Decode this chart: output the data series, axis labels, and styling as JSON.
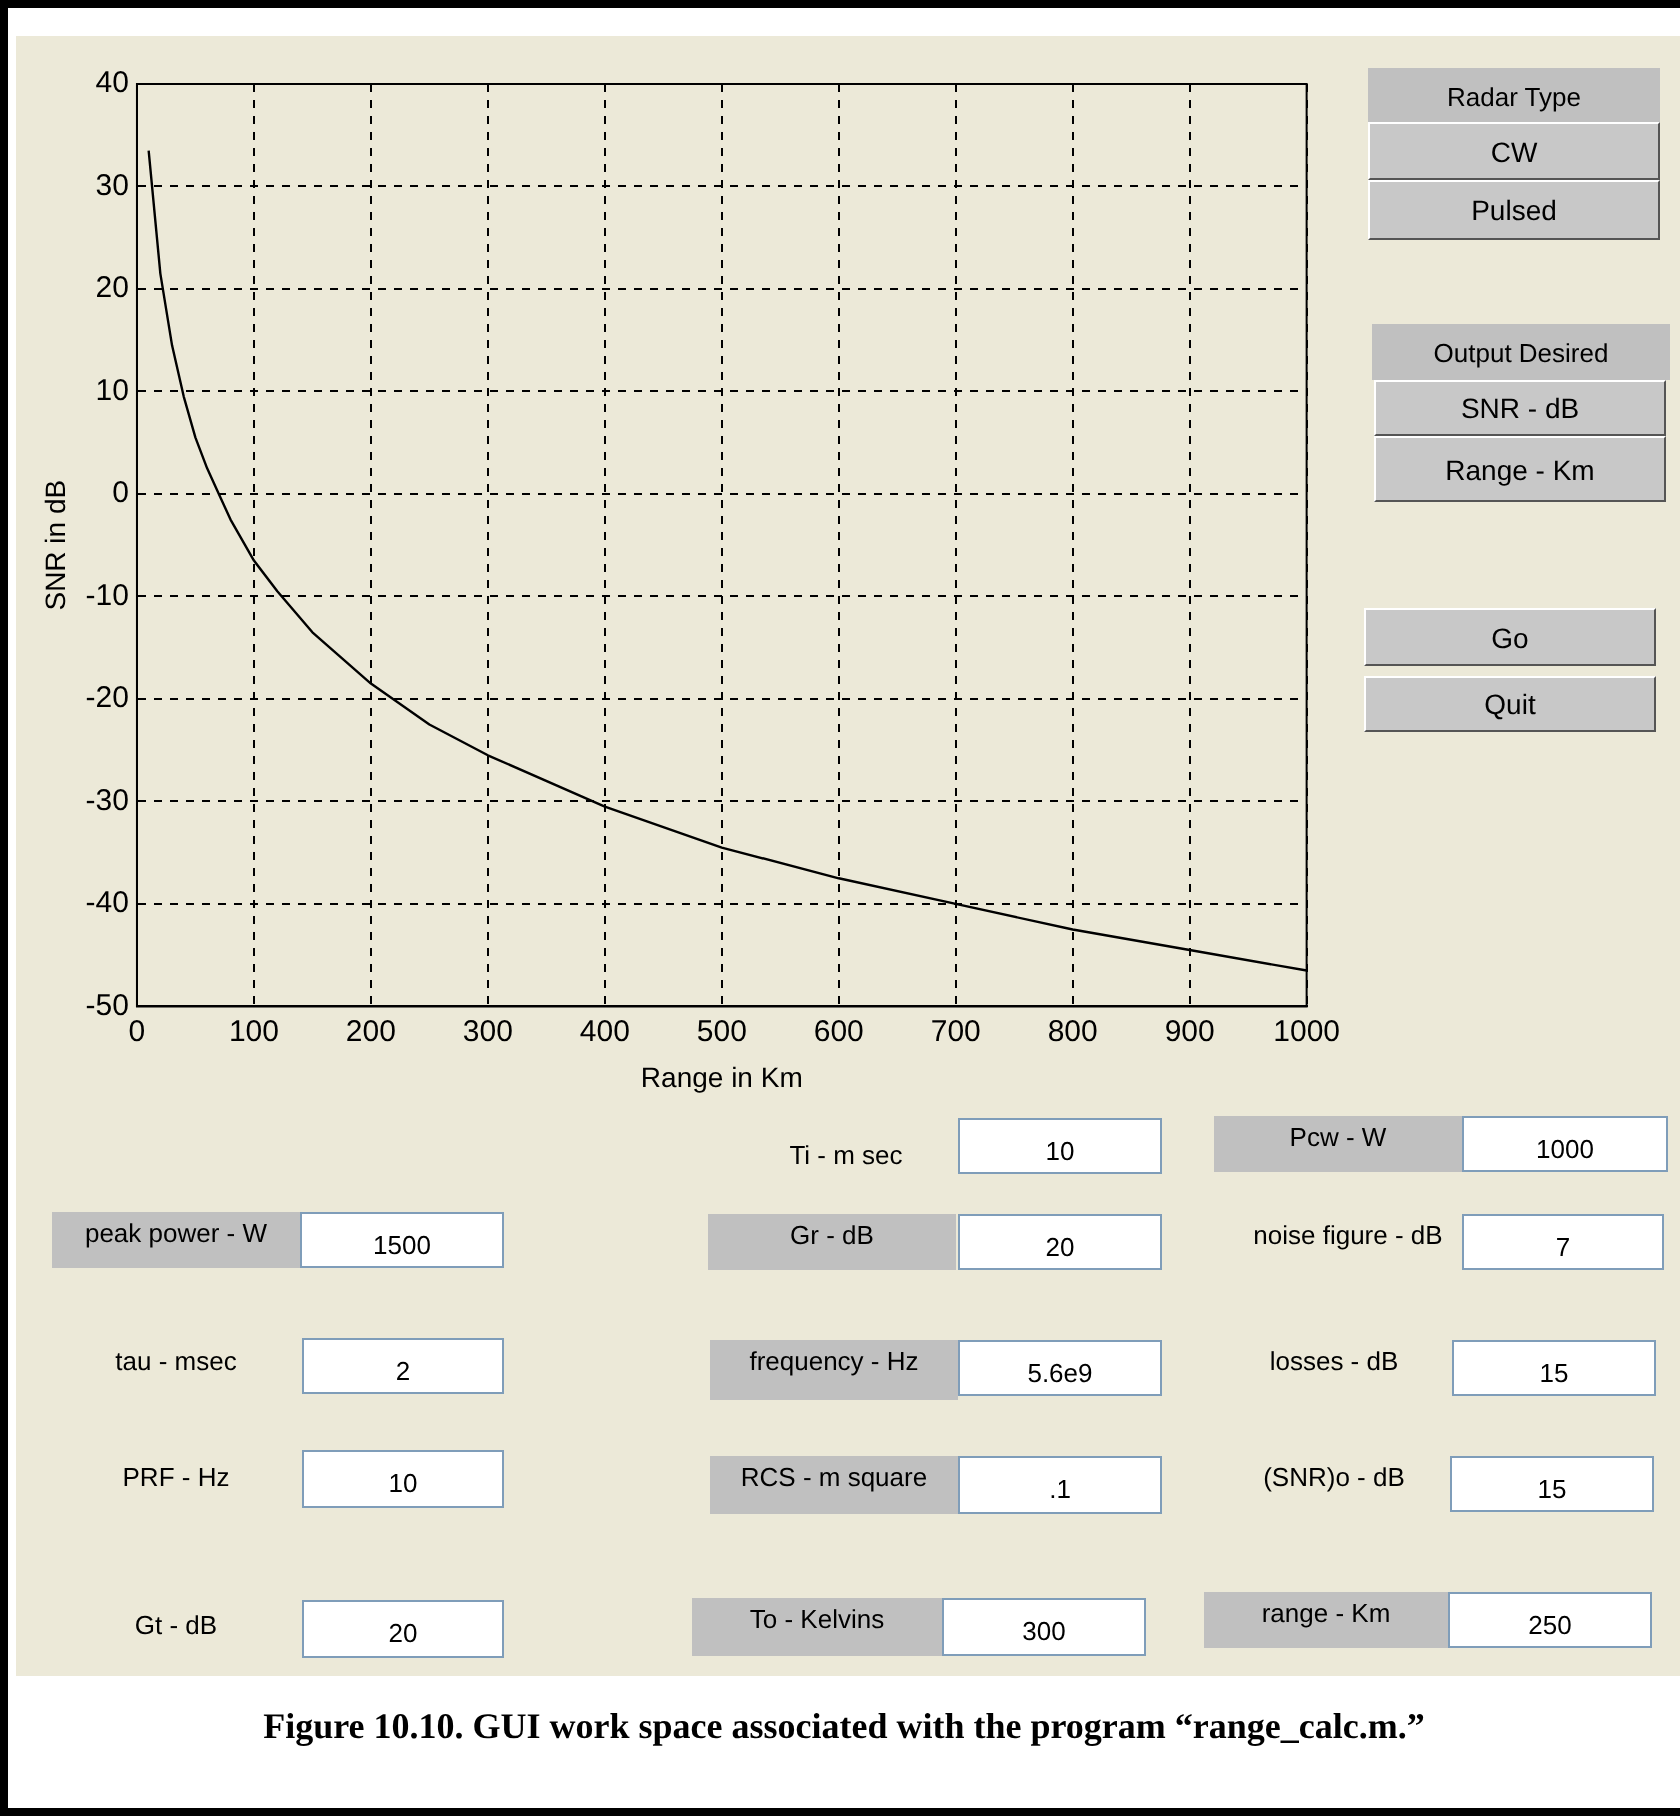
{
  "chart_data": {
    "type": "line",
    "xlabel": "Range in Km",
    "ylabel": "SNR in dB",
    "x": [
      10,
      20,
      30,
      40,
      50,
      60,
      70,
      80,
      100,
      120,
      150,
      200,
      250,
      300,
      400,
      500,
      600,
      700,
      800,
      900,
      1000
    ],
    "series": [
      {
        "color": "#000000",
        "values": [
          33.5,
          21.5,
          14.5,
          9.5,
          5.5,
          2.5,
          0,
          -2.5,
          -6.5,
          -9.5,
          -13.5,
          -18.5,
          -22.5,
          -25.5,
          -30.5,
          -34.5,
          -37.5,
          -40,
          -42.5,
          -44.5,
          -46.5
        ]
      }
    ],
    "xlim": [
      0,
      1000
    ],
    "xticks": [
      0,
      100,
      200,
      300,
      400,
      500,
      600,
      700,
      800,
      900,
      1000
    ],
    "ylim": [
      -50,
      40
    ],
    "yticks": [
      -50,
      -40,
      -30,
      -20,
      -10,
      0,
      10,
      20,
      30,
      40
    ],
    "grid": true,
    "line_style": "solid",
    "marker": "none",
    "annotations": [
      "Radar Type",
      "CW",
      "Pulsed",
      "Output Desired",
      "SNR - dB",
      "Range - Km",
      "Go",
      "Quit",
      "Ti - m sec",
      "10",
      "Pcw - W",
      "1000",
      "peak power - W",
      "1500",
      "Gr - dB",
      "20",
      "noise figure - dB",
      "7",
      "tau - msec",
      "2",
      "frequency - Hz",
      "5.6e9",
      "losses - dB",
      "15",
      "PRF - Hz",
      "10",
      "RCS - m square",
      ".1",
      "(SNR)o - dB",
      "15",
      "Gt - dB",
      "20",
      "To - Kelvins",
      "300",
      "range - Km",
      "250",
      "Figure 10.10. GUI work space associated with the program “range_calc.m.”"
    ]
  }
}
